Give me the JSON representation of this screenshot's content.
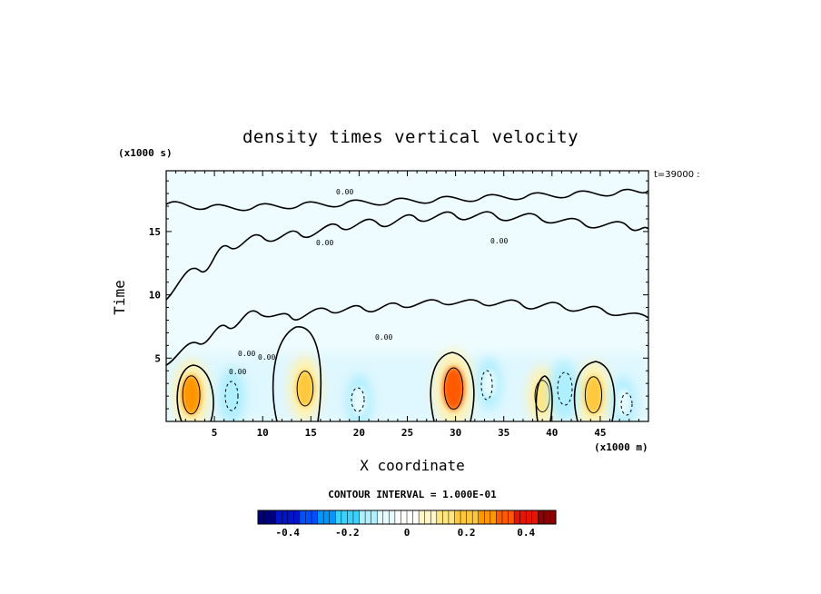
{
  "chart_data": {
    "type": "heatmap",
    "title": "density times vertical velocity",
    "xlabel": "X coordinate",
    "ylabel": "Time",
    "x_unit_label": "(x1000 m)",
    "y_unit_label": "(x1000 s)",
    "time_label": "t=39000 :",
    "xlim": [
      0,
      50
    ],
    "ylim": [
      0,
      19.8
    ],
    "x_ticks": [
      5,
      10,
      15,
      20,
      25,
      30,
      35,
      40,
      45
    ],
    "y_ticks": [
      5,
      10,
      15
    ],
    "contour_interval_text": "CONTOUR INTERVAL = 1.000E-01",
    "colorbar": {
      "range": [
        -0.5,
        0.5
      ],
      "ticks": [
        -0.4,
        -0.2,
        0,
        0.2,
        0.4
      ],
      "tick_labels": [
        "-0.4",
        "-0.2",
        "0",
        "0.2",
        "0.4"
      ],
      "colors": [
        "#00007f",
        "#0014c8",
        "#0050ff",
        "#0096ff",
        "#3cd2ff",
        "#aef0ff",
        "#e6fbff",
        "#ffffff",
        "#fff6c8",
        "#ffe682",
        "#ffc83c",
        "#ff9600",
        "#ff5a00",
        "#e61400",
        "#8c0000"
      ]
    },
    "positive_cells": [
      {
        "x": 2.6,
        "t": 2.1,
        "v": 0.25
      },
      {
        "x": 14.4,
        "t": 2.6,
        "v": 0.2
      },
      {
        "x": 29.8,
        "t": 2.6,
        "v": 0.3
      },
      {
        "x": 39.0,
        "t": 2.0,
        "v": 0.15
      },
      {
        "x": 44.3,
        "t": 2.1,
        "v": 0.22
      }
    ],
    "negative_cells": [
      {
        "x": 6.8,
        "t": 2.0,
        "v": -0.12
      },
      {
        "x": 20.0,
        "t": 1.6,
        "v": -0.1
      },
      {
        "x": 33.5,
        "t": 3.0,
        "v": -0.08
      },
      {
        "x": 41.2,
        "t": 2.4,
        "v": -0.15
      },
      {
        "x": 47.4,
        "t": 1.5,
        "v": -0.08
      }
    ],
    "contour_labels": [
      "0.00",
      "0.00",
      "0.00",
      "0.00",
      "0.00",
      "0.00",
      "0.00"
    ]
  }
}
